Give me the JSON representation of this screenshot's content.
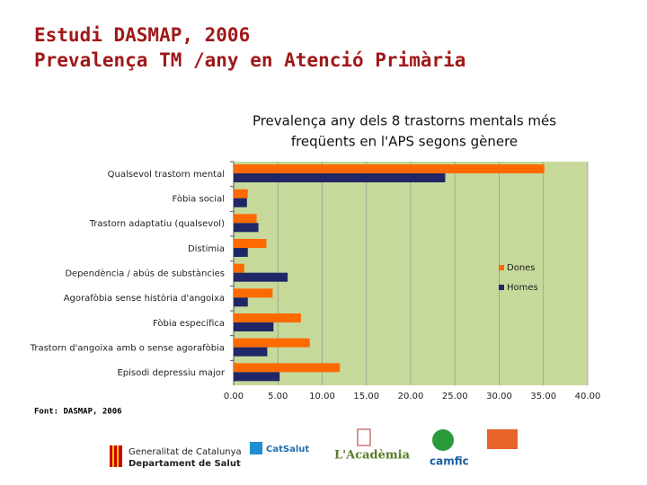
{
  "header": {
    "line1": "Estudi DASMAP, 2006",
    "line2": "Prevalença TM /any en Atenció Primària"
  },
  "chart_data": {
    "type": "hbar",
    "title": "Prevalença any dels 8 trastorns mentals més",
    "title_line2": "freqüents en l'APS segons gènere",
    "categories": [
      "Qualsevol trastorn mental",
      "Fòbia social",
      "Trastorn adaptatiu (qualsevol)",
      "Distimia",
      "Dependència / abús de substàncies",
      "Agorafòbia sense història d'angoixa",
      "Fòbia específica",
      "Trastorn d'angoixa amb o sense agorafòbia",
      "Episodi depressiu major"
    ],
    "series": [
      {
        "name": "Dones",
        "color": "#ff6a00",
        "values": [
          35.1,
          1.6,
          2.6,
          3.7,
          1.2,
          4.4,
          7.6,
          8.6,
          12.0
        ]
      },
      {
        "name": "Homes",
        "color": "#1f2766",
        "values": [
          23.9,
          1.5,
          2.8,
          1.6,
          6.1,
          1.6,
          4.5,
          3.8,
          5.2
        ]
      }
    ],
    "xlim": [
      0,
      40
    ],
    "xticks": [
      {
        "value": 0,
        "label": "0.00"
      },
      {
        "value": 5,
        "label": "5.00"
      },
      {
        "value": 10,
        "label": "10.00"
      },
      {
        "value": 15,
        "label": "15.00"
      },
      {
        "value": 20,
        "label": "20.00"
      },
      {
        "value": 25,
        "label": "25.00"
      },
      {
        "value": 30,
        "label": "30.00"
      },
      {
        "value": 35,
        "label": "35.00"
      },
      {
        "value": 40,
        "label": "40.00"
      }
    ],
    "grid": true,
    "background": "#c6d99b",
    "legend": "right"
  },
  "source": "Font: DASMAP, 2006",
  "logos": {
    "generalitat1": "Generalitat de Catalunya",
    "generalitat2": "Departament de Salut",
    "catsalut": "CatSalut",
    "academia": "L'Acadèmia",
    "camfic": "camfic"
  }
}
